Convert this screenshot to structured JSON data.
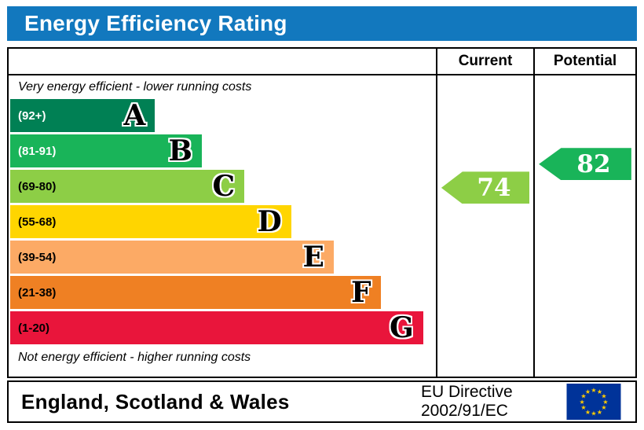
{
  "title": "Energy Efficiency Rating",
  "table": {
    "current_header": "Current",
    "potential_header": "Potential",
    "top_note": "Very energy efficient - lower running costs",
    "bottom_note": "Not energy efficient - higher running costs"
  },
  "footer": {
    "region": "England, Scotland & Wales",
    "directive_line1": "EU Directive",
    "directive_line2": "2002/91/EC"
  },
  "colors": {
    "header_blue": "#1278be",
    "flag_blue": "#003399",
    "flag_star": "#ffcc00"
  },
  "chart_data": {
    "type": "bar",
    "title": "Energy Efficiency Rating",
    "top_note": "Very energy efficient - lower running costs",
    "bottom_note": "Not energy efficient - higher running costs",
    "columns": [
      "Current",
      "Potential"
    ],
    "bands": [
      {
        "letter": "A",
        "range": "(92+)",
        "min": 92,
        "max": 100,
        "color": "#008054",
        "width_pct": 34,
        "range_text_color": "#ffffff"
      },
      {
        "letter": "B",
        "range": "(81-91)",
        "min": 81,
        "max": 91,
        "color": "#19b459",
        "width_pct": 45,
        "range_text_color": "#ffffff"
      },
      {
        "letter": "C",
        "range": "(69-80)",
        "min": 69,
        "max": 80,
        "color": "#8dce46",
        "width_pct": 55,
        "range_text_color": "#000000"
      },
      {
        "letter": "D",
        "range": "(55-68)",
        "min": 55,
        "max": 68,
        "color": "#ffd500",
        "width_pct": 66,
        "range_text_color": "#000000"
      },
      {
        "letter": "E",
        "range": "(39-54)",
        "min": 39,
        "max": 54,
        "color": "#fcaa65",
        "width_pct": 76,
        "range_text_color": "#000000"
      },
      {
        "letter": "F",
        "range": "(21-38)",
        "min": 21,
        "max": 38,
        "color": "#ef8023",
        "width_pct": 87,
        "range_text_color": "#000000"
      },
      {
        "letter": "G",
        "range": "(1-20)",
        "min": 1,
        "max": 20,
        "color": "#e9153b",
        "width_pct": 97,
        "range_text_color": "#000000"
      }
    ],
    "current": {
      "label": "Current",
      "value": 74,
      "band": "C",
      "band_index": 2,
      "color": "#8dce46"
    },
    "potential": {
      "label": "Potential",
      "value": 82,
      "band": "B",
      "band_index": 1,
      "color": "#19b459"
    }
  }
}
